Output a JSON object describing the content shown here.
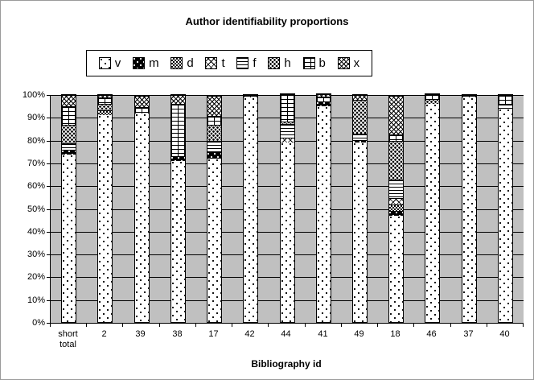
{
  "chart_data": {
    "type": "bar",
    "stacked": true,
    "percent": true,
    "title": "Author identifiability proportions",
    "xlabel": "Bibliography id",
    "ylabel": "",
    "ylim": [
      0,
      100
    ],
    "ytick_labels": [
      "0%",
      "10%",
      "20%",
      "30%",
      "40%",
      "50%",
      "60%",
      "70%",
      "80%",
      "90%",
      "100%"
    ],
    "grid": true,
    "plot_bg_color": "#c0c0c0",
    "legend_position": "top",
    "categories": [
      "short total",
      "2",
      "39",
      "38",
      "17",
      "42",
      "44",
      "41",
      "49",
      "18",
      "46",
      "37",
      "40"
    ],
    "series": [
      {
        "name": "v",
        "pattern": "sparse-dots-on-white",
        "values": [
          74,
          91,
          92,
          71,
          72,
          99,
          79,
          95,
          79,
          47,
          96,
          99,
          94
        ]
      },
      {
        "name": "m",
        "pattern": "white-dots-on-black",
        "values": [
          2,
          0,
          0,
          2,
          3,
          0,
          0,
          2,
          1,
          2,
          0,
          0,
          0
        ]
      },
      {
        "name": "d",
        "pattern": "dense-checkerboard",
        "values": [
          0,
          2,
          0,
          0,
          0,
          0,
          0,
          0,
          0,
          3,
          0,
          0,
          0
        ]
      },
      {
        "name": "t",
        "pattern": "light-diagonal-crosshatch",
        "values": [
          0,
          0,
          0,
          0,
          0,
          0,
          2,
          0,
          0,
          3,
          0,
          0,
          0
        ]
      },
      {
        "name": "f",
        "pattern": "horizontal-lines",
        "values": [
          3,
          0,
          0,
          0,
          5,
          0,
          6,
          0,
          3,
          8,
          0,
          0,
          2
        ]
      },
      {
        "name": "h",
        "pattern": "dense-dots",
        "values": [
          8,
          3,
          0,
          0,
          7,
          0,
          1,
          0,
          15,
          17,
          2,
          0,
          0
        ]
      },
      {
        "name": "b",
        "pattern": "brick",
        "values": [
          8,
          3,
          3,
          23,
          4,
          1,
          12,
          2,
          0,
          3,
          2,
          1,
          4
        ]
      },
      {
        "name": "x",
        "pattern": "diagonal-crosshatch",
        "values": [
          5,
          1,
          5,
          4,
          9,
          0,
          0,
          1,
          2,
          17,
          0,
          0,
          0
        ]
      }
    ]
  },
  "legend": {
    "items": [
      {
        "key": "v",
        "label": "v"
      },
      {
        "key": "m",
        "label": "m"
      },
      {
        "key": "d",
        "label": "d"
      },
      {
        "key": "t",
        "label": "t"
      },
      {
        "key": "f",
        "label": "f"
      },
      {
        "key": "h",
        "label": "h"
      },
      {
        "key": "b",
        "label": "b"
      },
      {
        "key": "x",
        "label": "x"
      }
    ]
  }
}
